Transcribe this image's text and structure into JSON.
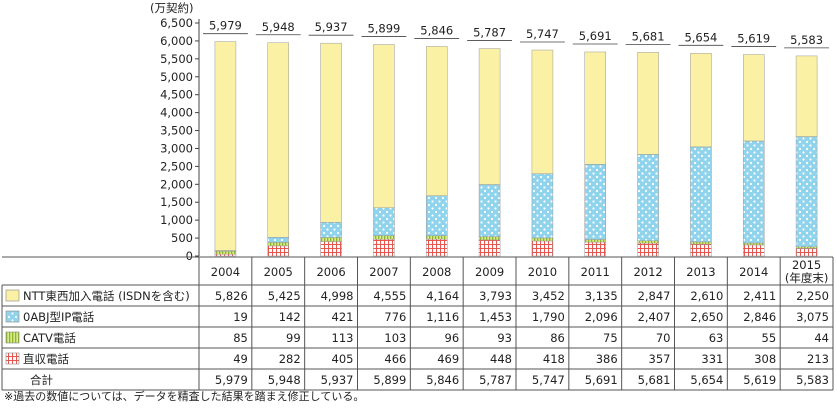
{
  "chart_data": {
    "type": "bar",
    "stacked": true,
    "unit_label": "(万契約)",
    "categories": [
      "2004",
      "2005",
      "2006",
      "2007",
      "2008",
      "2009",
      "2010",
      "2011",
      "2012",
      "2013",
      "2014",
      "2015"
    ],
    "category_note_2015": "(年度末)",
    "ylim": [
      0,
      6500
    ],
    "yticks": [
      "0",
      "500",
      "1,000",
      "1,500",
      "2,000",
      "2,500",
      "3,000",
      "3,500",
      "4,000",
      "4,500",
      "5,000",
      "5,500",
      "6,000",
      "6,500"
    ],
    "series": [
      {
        "name": "直収電話",
        "color": "#e8554f",
        "pattern": "grid",
        "values": [
          49,
          282,
          405,
          466,
          469,
          448,
          418,
          386,
          357,
          331,
          308,
          213
        ],
        "labels": [
          "49",
          "282",
          "405",
          "466",
          "469",
          "448",
          "418",
          "386",
          "357",
          "331",
          "308",
          "213"
        ]
      },
      {
        "name": "CATV電話",
        "color": "#a3c73b",
        "pattern": "stripes",
        "values": [
          85,
          99,
          113,
          103,
          96,
          93,
          86,
          75,
          70,
          63,
          55,
          44
        ],
        "labels": [
          "85",
          "99",
          "113",
          "103",
          "96",
          "93",
          "86",
          "75",
          "70",
          "63",
          "55",
          "44"
        ]
      },
      {
        "name": "0ABJ型IP電話",
        "color": "#8fd3ec",
        "pattern": "dots",
        "values": [
          19,
          142,
          421,
          776,
          1116,
          1453,
          1790,
          2096,
          2407,
          2650,
          2846,
          3075
        ],
        "labels": [
          "19",
          "142",
          "421",
          "776",
          "1,116",
          "1,453",
          "1,790",
          "2,096",
          "2,407",
          "2,650",
          "2,846",
          "3,075"
        ]
      },
      {
        "name": "NTT東西加入電話 (ISDNを含む)",
        "color": "#fbf1a5",
        "pattern": "solid",
        "values": [
          5826,
          5425,
          4998,
          4555,
          4164,
          3793,
          3452,
          3135,
          2847,
          2610,
          2411,
          2250
        ],
        "labels": [
          "5,826",
          "5,425",
          "4,998",
          "4,555",
          "4,164",
          "3,793",
          "3,452",
          "3,135",
          "2,847",
          "2,610",
          "2,411",
          "2,250"
        ]
      }
    ],
    "totals": [
      5979,
      5948,
      5937,
      5899,
      5846,
      5787,
      5747,
      5691,
      5681,
      5654,
      5619,
      5583
    ],
    "total_labels": [
      "5,979",
      "5,948",
      "5,937",
      "5,899",
      "5,846",
      "5,787",
      "5,747",
      "5,691",
      "5,681",
      "5,654",
      "5,619",
      "5,583"
    ],
    "total_row_label": "合計",
    "table_row_order": [
      3,
      2,
      1,
      0
    ]
  },
  "footnote": "※過去の数値については、データを精査した結果を踏まえ修正している。"
}
